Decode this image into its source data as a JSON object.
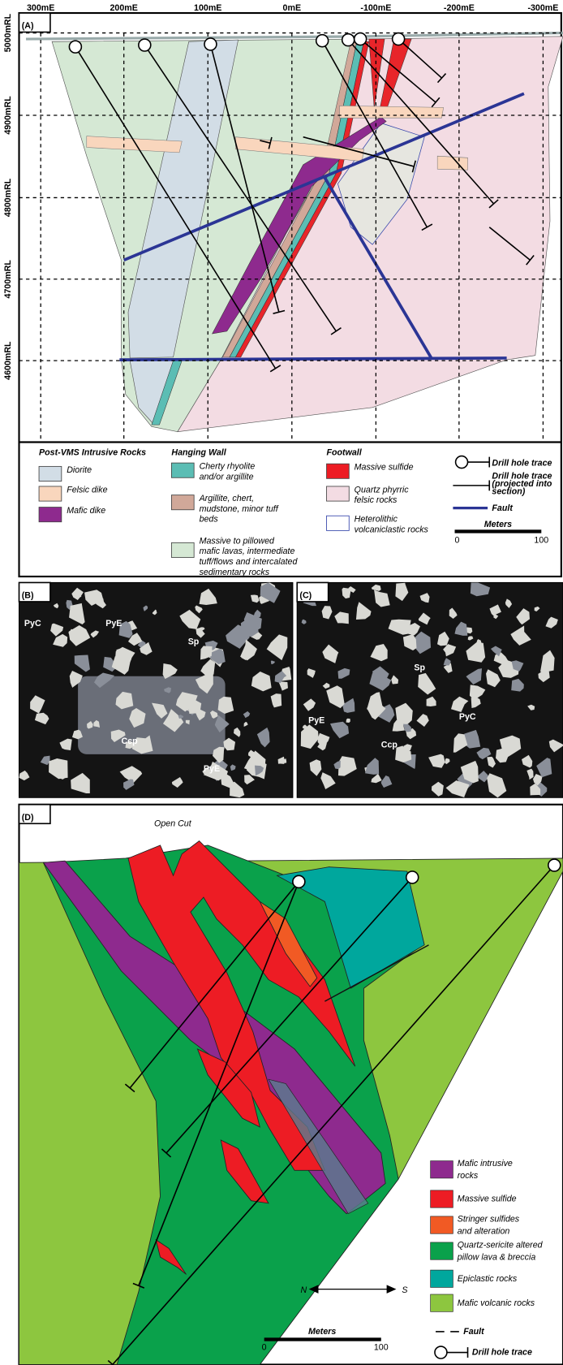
{
  "panel_a": {
    "label": "(A)",
    "x_axis": [
      "300mE",
      "200mE",
      "100mE",
      "0mE",
      "-100mE",
      "-200mE",
      "-300mE"
    ],
    "y_axis": [
      "5000mRL",
      "4900mRL",
      "4800mRL",
      "4700mRL",
      "4600mRL"
    ],
    "legend": [
      {
        "title": "Post-VMS Intrusive Rocks",
        "items": [
          [
            "Diorite"
          ],
          [
            "Felsic dike"
          ],
          [
            "Mafic dike"
          ]
        ]
      },
      {
        "title": "Hanging Wall",
        "items": [
          [
            "Cherty rhyolite",
            "and/or argillite"
          ],
          [
            "Argillite, chert,",
            "mudstone, minor tuff",
            "beds"
          ],
          [
            "Massive to pillowed",
            "mafic lavas, intermediate",
            "tuff/flows and intercalated",
            "sedimentary rocks"
          ]
        ]
      },
      {
        "title": "Footwall",
        "items": [
          [
            "Massive sulfide"
          ],
          [
            "Quartz phyrric",
            "felsic rocks"
          ],
          [
            "Heterolithic",
            "volcaniclastic rocks"
          ]
        ]
      }
    ],
    "drill_hole": "Drill hole trace",
    "drill_hole_projected": [
      "Drill hole trace",
      "(projected into",
      "section)"
    ],
    "fault": "Fault",
    "scale_title": "Meters",
    "scale_min": "0",
    "scale_max": "100"
  },
  "panel_b": {
    "label": "(B)",
    "minerals": [
      "PyC",
      "PyE",
      "Sp",
      "Ccp",
      "PyE"
    ]
  },
  "panel_c": {
    "label": "(C)",
    "minerals": [
      "Sp",
      "PyE",
      "PyC",
      "Ccp"
    ]
  },
  "panel_d": {
    "label": "(D)",
    "open_cut": "Open Cut",
    "legend": [
      [
        "Mafic intrusive",
        "rocks"
      ],
      [
        "Massive sulfide"
      ],
      [
        "Stringer sulfides",
        "and alteration"
      ],
      [
        "Quartz-sericite altered",
        "pillow lava & breccia"
      ],
      [
        "Epiclastic rocks"
      ],
      [
        "Mafic volcanic rocks"
      ]
    ],
    "north": "N",
    "south": "S",
    "scale_title": "Meters",
    "scale_min": "0",
    "scale_max": "100",
    "fault": "Fault",
    "drill_hole": "Drill hole trace"
  }
}
